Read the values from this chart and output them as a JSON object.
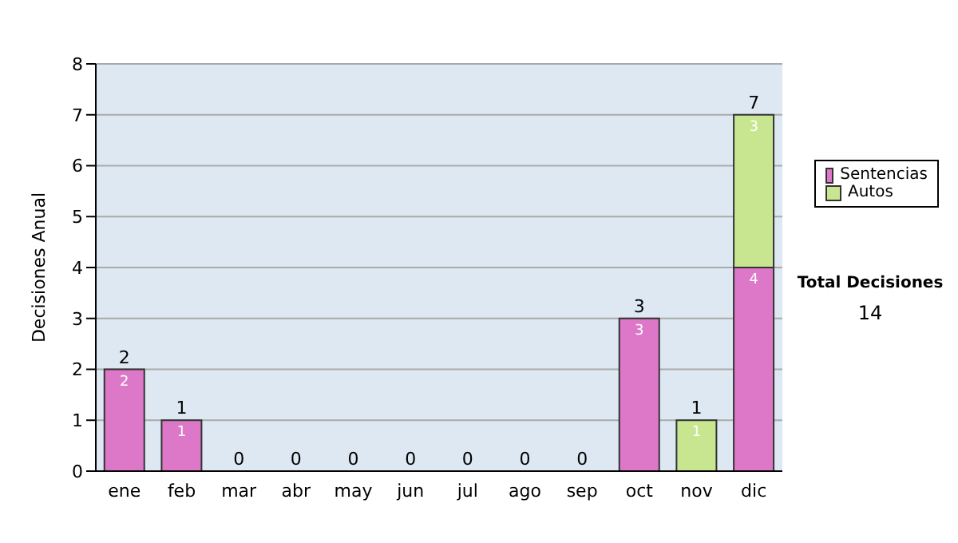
{
  "chart_data": {
    "type": "bar",
    "stacked": true,
    "ylabel": "Decisiones Anual",
    "categories": [
      "ene",
      "feb",
      "mar",
      "abr",
      "may",
      "jun",
      "jul",
      "ago",
      "sep",
      "oct",
      "nov",
      "dic"
    ],
    "series": [
      {
        "name": "Sentencias",
        "color": "#dd77c8",
        "values": [
          2,
          1,
          0,
          0,
          0,
          0,
          0,
          0,
          0,
          3,
          0,
          4
        ],
        "value_labels": [
          "2",
          "1",
          null,
          null,
          null,
          null,
          null,
          null,
          null,
          "3",
          null,
          "4"
        ]
      },
      {
        "name": "Autos",
        "color": "#c8e690",
        "values": [
          0,
          0,
          0,
          0,
          0,
          0,
          0,
          0,
          0,
          0,
          1,
          3
        ],
        "value_labels": [
          null,
          null,
          null,
          null,
          null,
          null,
          null,
          null,
          null,
          null,
          "1",
          "3"
        ]
      }
    ],
    "totals": [
      "2",
      "1",
      "0",
      "0",
      "0",
      "0",
      "0",
      "0",
      "0",
      "3",
      "1",
      "7"
    ],
    "ylim": [
      0,
      8
    ],
    "yticks": [
      0,
      1,
      2,
      3,
      4,
      5,
      6,
      7,
      8
    ],
    "grid": "y",
    "legend": "right",
    "annotations": [
      "Total Decisiones",
      "14"
    ]
  }
}
